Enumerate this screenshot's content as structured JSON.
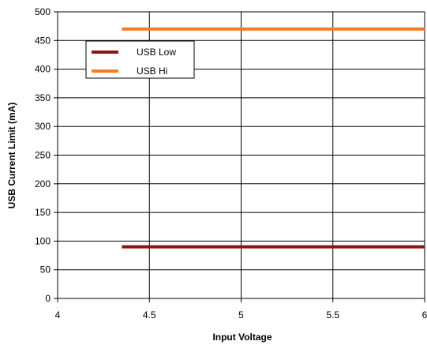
{
  "chart_data": {
    "type": "line",
    "xlabel": "Input Voltage",
    "ylabel": "USB Current Limit (mA)",
    "xlim": [
      4,
      6
    ],
    "ylim": [
      0,
      500
    ],
    "x_ticks": [
      "4",
      "4.5",
      "5",
      "5.5",
      "6"
    ],
    "y_ticks": [
      "0",
      "50",
      "100",
      "150",
      "200",
      "250",
      "300",
      "350",
      "400",
      "450",
      "500"
    ],
    "grid": true,
    "legend_position": "top-left",
    "series": [
      {
        "name": "USB Low",
        "color": "#8b1414",
        "x": [
          4.35,
          6.0
        ],
        "values": [
          90,
          90
        ]
      },
      {
        "name": "USB Hi",
        "color": "#f57c22",
        "x": [
          4.35,
          6.0
        ],
        "values": [
          470,
          470
        ]
      }
    ]
  }
}
